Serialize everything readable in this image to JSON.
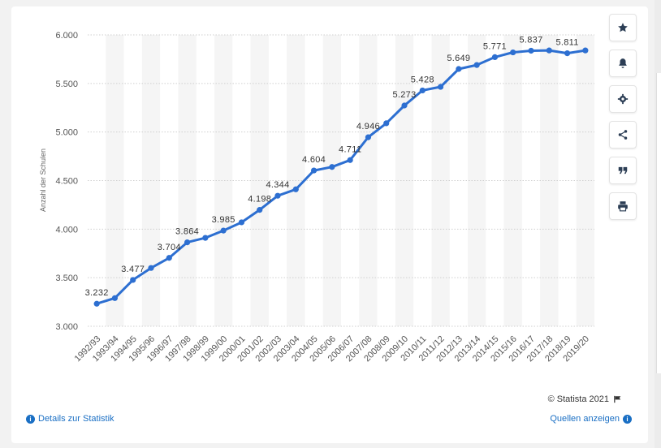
{
  "sidebar": {
    "buttons": [
      {
        "name": "favorite-button",
        "icon": "star-icon"
      },
      {
        "name": "notification-button",
        "icon": "bell-icon"
      },
      {
        "name": "settings-button",
        "icon": "gear-icon"
      },
      {
        "name": "share-button",
        "icon": "share-icon"
      },
      {
        "name": "cite-button",
        "icon": "quote-icon"
      },
      {
        "name": "print-button",
        "icon": "printer-icon"
      }
    ]
  },
  "footer": {
    "details_label": "Details zur Statistik",
    "sources_label": "Quellen anzeigen",
    "copyright": "© Statista 2021"
  },
  "colors": {
    "line": "#2d6fd1",
    "link": "#1a6fc4",
    "band": "#f5f5f5"
  },
  "chart_data": {
    "type": "line",
    "ylabel": "Anzahl der Schulen",
    "ylim": [
      3000,
      6000
    ],
    "yticks": [
      "3.000",
      "3.500",
      "4.000",
      "4.500",
      "5.000",
      "5.500",
      "6.000"
    ],
    "ytick_values": [
      3000,
      3500,
      4000,
      4500,
      5000,
      5500,
      6000
    ],
    "grid": true,
    "categories": [
      "1992/93",
      "1993/94",
      "1994/95",
      "1995/96",
      "1996/97",
      "1997/98",
      "1998/99",
      "1999/00",
      "2000/01",
      "2001/02",
      "2002/03",
      "2003/04",
      "2004/05",
      "2005/06",
      "2006/07",
      "2007/08",
      "2008/09",
      "2009/10",
      "2010/11",
      "2011/12",
      "2012/13",
      "2013/14",
      "2014/15",
      "2015/16",
      "2016/17",
      "2017/18",
      "2018/19",
      "2019/20"
    ],
    "values": [
      3232,
      3290,
      3477,
      3600,
      3704,
      3864,
      3910,
      3985,
      4070,
      4198,
      4344,
      4410,
      4604,
      4640,
      4711,
      4946,
      5090,
      5273,
      5428,
      5465,
      5649,
      5690,
      5771,
      5820,
      5837,
      5840,
      5811,
      5840
    ],
    "data_labels": [
      {
        "index": 0,
        "text": "3.232"
      },
      {
        "index": 2,
        "text": "3.477"
      },
      {
        "index": 4,
        "text": "3.704"
      },
      {
        "index": 5,
        "text": "3.864"
      },
      {
        "index": 7,
        "text": "3.985"
      },
      {
        "index": 9,
        "text": "4.198"
      },
      {
        "index": 10,
        "text": "4.344"
      },
      {
        "index": 12,
        "text": "4.604"
      },
      {
        "index": 14,
        "text": "4.711"
      },
      {
        "index": 15,
        "text": "4.946"
      },
      {
        "index": 17,
        "text": "5.273"
      },
      {
        "index": 18,
        "text": "5.428"
      },
      {
        "index": 20,
        "text": "5.649"
      },
      {
        "index": 22,
        "text": "5.771"
      },
      {
        "index": 24,
        "text": "5.837"
      },
      {
        "index": 26,
        "text": "5.811"
      }
    ]
  }
}
